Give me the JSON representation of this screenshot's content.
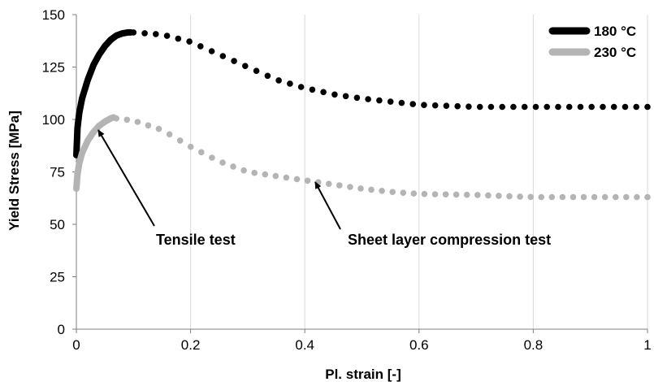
{
  "chart_data": {
    "type": "line",
    "xlabel": "Pl. strain  [-]",
    "ylabel": "Yield Stress  [MPa]",
    "xlim": [
      0,
      1
    ],
    "ylim": [
      0,
      150
    ],
    "x_ticks": [
      "0",
      "0.2",
      "0.4",
      "0.6",
      "0.8",
      "1"
    ],
    "y_ticks": [
      "0",
      "25",
      "50",
      "75",
      "100",
      "125",
      "150"
    ],
    "grid": "vertical",
    "legend_position": "top-right",
    "series": [
      {
        "name": "180 °C",
        "color": "#000000",
        "tensile": [
          [
            0.0,
            83
          ],
          [
            0.002,
            96
          ],
          [
            0.005,
            103
          ],
          [
            0.01,
            110
          ],
          [
            0.02,
            119
          ],
          [
            0.03,
            126
          ],
          [
            0.04,
            131
          ],
          [
            0.05,
            135
          ],
          [
            0.06,
            138
          ],
          [
            0.07,
            140
          ],
          [
            0.08,
            141
          ],
          [
            0.09,
            141.5
          ],
          [
            0.095,
            141.5
          ]
        ],
        "compression": [
          [
            0.1,
            141.5
          ],
          [
            0.15,
            140.5
          ],
          [
            0.2,
            137
          ],
          [
            0.25,
            131
          ],
          [
            0.3,
            125
          ],
          [
            0.35,
            119
          ],
          [
            0.4,
            115
          ],
          [
            0.45,
            112
          ],
          [
            0.5,
            110
          ],
          [
            0.55,
            108.5
          ],
          [
            0.6,
            107
          ],
          [
            0.65,
            106.5
          ],
          [
            0.7,
            106
          ],
          [
            0.8,
            106
          ],
          [
            0.9,
            106
          ],
          [
            1.0,
            106
          ]
        ]
      },
      {
        "name": "230 °C",
        "color": "#b4b4b4",
        "tensile": [
          [
            0.0,
            67
          ],
          [
            0.002,
            74
          ],
          [
            0.005,
            79
          ],
          [
            0.01,
            84
          ],
          [
            0.02,
            90
          ],
          [
            0.03,
            94
          ],
          [
            0.04,
            97
          ],
          [
            0.05,
            99
          ],
          [
            0.06,
            100.5
          ],
          [
            0.065,
            101
          ]
        ],
        "compression": [
          [
            0.07,
            100.5
          ],
          [
            0.1,
            99.5
          ],
          [
            0.15,
            95
          ],
          [
            0.2,
            87
          ],
          [
            0.25,
            80
          ],
          [
            0.3,
            75
          ],
          [
            0.35,
            73
          ],
          [
            0.4,
            71
          ],
          [
            0.45,
            69
          ],
          [
            0.5,
            67
          ],
          [
            0.55,
            65.5
          ],
          [
            0.6,
            64.5
          ],
          [
            0.7,
            64
          ],
          [
            0.8,
            63
          ],
          [
            0.9,
            63
          ],
          [
            1.0,
            63
          ]
        ]
      }
    ],
    "annotations": [
      {
        "text": "Tensile test",
        "arrow_to": [
          0.035,
          99
        ]
      },
      {
        "text": "Sheet layer compression test",
        "arrow_to": [
          0.415,
          71
        ]
      }
    ]
  }
}
